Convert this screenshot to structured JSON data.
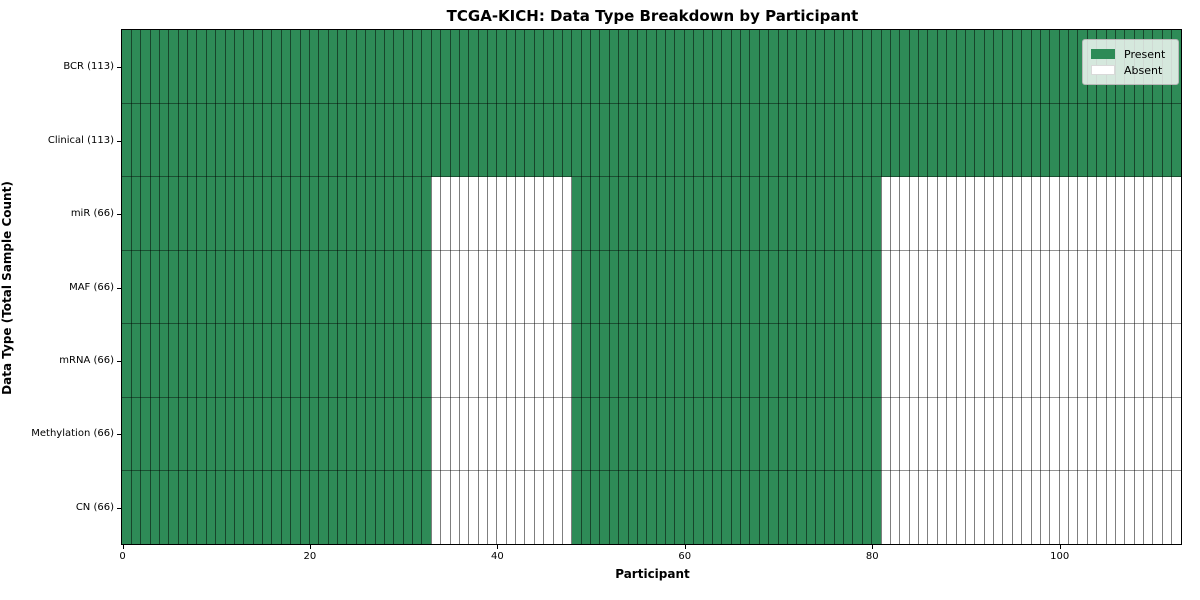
{
  "chart_data": {
    "type": "heatmap",
    "title": "TCGA-KICH: Data Type Breakdown by Participant",
    "xlabel": "Participant",
    "ylabel": "Data Type (Total Sample Count)",
    "n_participants": 113,
    "x_ticks": [
      0,
      20,
      40,
      60,
      80,
      100
    ],
    "xlim": [
      0,
      113
    ],
    "grid": false,
    "legend_position": "upper right",
    "legend": [
      "Present",
      "Absent"
    ],
    "colors": {
      "present": "#2e8b57",
      "absent": "#ffffff"
    },
    "rows": [
      {
        "label": "BCR (113)",
        "total": 113,
        "present_segments": [
          [
            0,
            113
          ]
        ]
      },
      {
        "label": "Clinical (113)",
        "total": 113,
        "present_segments": [
          [
            0,
            113
          ]
        ]
      },
      {
        "label": "miR (66)",
        "total": 66,
        "present_segments": [
          [
            0,
            33
          ],
          [
            48,
            81
          ]
        ]
      },
      {
        "label": "MAF (66)",
        "total": 66,
        "present_segments": [
          [
            0,
            33
          ],
          [
            48,
            81
          ]
        ]
      },
      {
        "label": "mRNA (66)",
        "total": 66,
        "present_segments": [
          [
            0,
            33
          ],
          [
            48,
            81
          ]
        ]
      },
      {
        "label": "Methylation (66)",
        "total": 66,
        "present_segments": [
          [
            0,
            33
          ],
          [
            48,
            81
          ]
        ]
      },
      {
        "label": "CN (66)",
        "total": 66,
        "present_segments": [
          [
            0,
            33
          ],
          [
            48,
            81
          ]
        ]
      }
    ]
  }
}
